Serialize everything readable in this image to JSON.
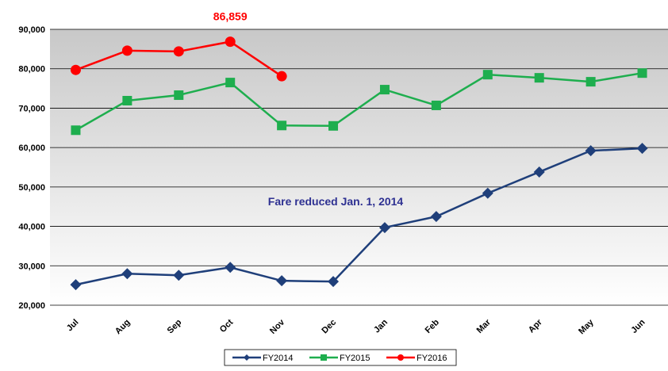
{
  "chart_data": {
    "type": "line",
    "categories": [
      "Jul",
      "Aug",
      "Sep",
      "Oct",
      "Nov",
      "Dec",
      "Jan",
      "Feb",
      "Mar",
      "Apr",
      "May",
      "Jun"
    ],
    "series": [
      {
        "name": "FY2014",
        "color": "#1f3f7a",
        "marker": "diamond",
        "values": [
          25200,
          28000,
          27600,
          29600,
          26200,
          26000,
          39700,
          42500,
          48400,
          53800,
          59200,
          59800
        ]
      },
      {
        "name": "FY2015",
        "color": "#1eae4e",
        "marker": "square",
        "values": [
          64400,
          71900,
          73300,
          76500,
          65600,
          65500,
          74700,
          70700,
          78500,
          77700,
          76700,
          78900
        ]
      },
      {
        "name": "FY2016",
        "color": "#ff0000",
        "marker": "circle",
        "values": [
          79700,
          84600,
          84400,
          86859,
          78100,
          null,
          null,
          null,
          null,
          null,
          null,
          null
        ],
        "value_labels": [
          null,
          null,
          null,
          "86,859",
          null,
          null,
          null,
          null,
          null,
          null,
          null,
          null
        ]
      }
    ],
    "annotations": [
      "Fare reduced Jan. 1, 2014"
    ],
    "ylim": [
      20000,
      90000
    ],
    "yticks": [
      {
        "value": 20000,
        "label": "20,000"
      },
      {
        "value": 30000,
        "label": "30,000"
      },
      {
        "value": 40000,
        "label": "40,000"
      },
      {
        "value": 50000,
        "label": "50,000"
      },
      {
        "value": 60000,
        "label": "60,000"
      },
      {
        "value": 70000,
        "label": "70,000"
      },
      {
        "value": 80000,
        "label": "80,000"
      },
      {
        "value": 90000,
        "label": "90,000"
      }
    ],
    "grid": true,
    "legend": "bottom"
  }
}
